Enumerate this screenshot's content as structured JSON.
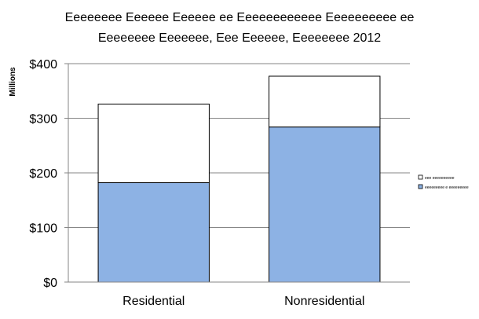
{
  "chart_data": {
    "type": "bar",
    "stacked": true,
    "title_lines": [
      "Eeeeeeee Eeeeee Eeeeee ee Eeeeeeeeeeee Eeeeeeeeee ee",
      "Eeeeeeee Eeeeeee, Eee Eeeeee, Eeeeeeee 2012"
    ],
    "ylabel": "Millions",
    "xlabel": "",
    "categories": [
      "Residential",
      "Nonresidential"
    ],
    "series": [
      {
        "name": "eeeeeeeee e eeeeeeeee",
        "values": [
          182,
          284
        ],
        "color": "#8db2e4"
      },
      {
        "name": "eee eeeeeeeeee",
        "values": [
          144,
          93
        ],
        "color": "#ffffff"
      }
    ],
    "ylim": [
      0,
      400
    ],
    "yticks": [
      0,
      100,
      200,
      300,
      400
    ],
    "ytick_labels": [
      "$0",
      "$100",
      "$200",
      "$300",
      "$400"
    ],
    "grid": true,
    "legend_position": "right"
  }
}
